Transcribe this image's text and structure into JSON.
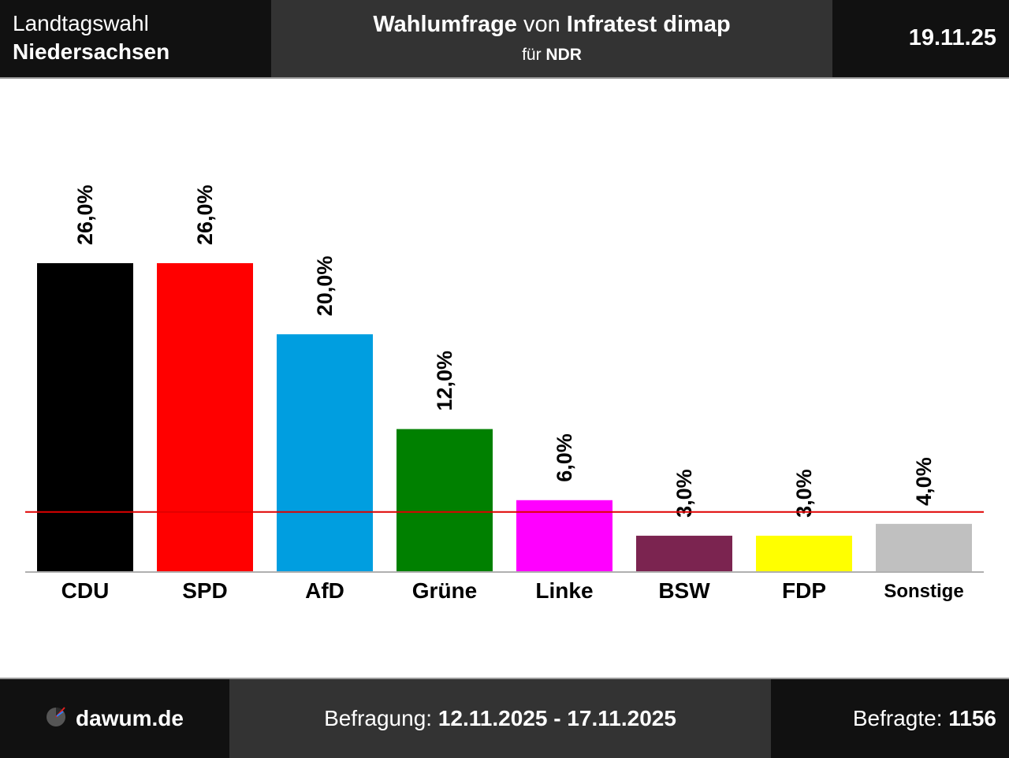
{
  "header": {
    "left_line1": "Landtagswahl",
    "left_line2": "Niedersachsen",
    "title_part1": "Wahlumfrage",
    "title_part2": " von ",
    "title_part3": "Infratest dimap",
    "sub_part1": "für ",
    "sub_part2": "NDR",
    "date": "19.11.25"
  },
  "footer": {
    "site": "dawum.de",
    "period_label": "Befragung: ",
    "period_value": "12.11.2025 - 17.11.2025",
    "respondents_label": "Befragte: ",
    "respondents_value": "1156"
  },
  "chart_data": {
    "type": "bar",
    "categories": [
      "CDU",
      "SPD",
      "AfD",
      "Grüne",
      "Linke",
      "BSW",
      "FDP",
      "Sonstige"
    ],
    "values": [
      26.0,
      26.0,
      20.0,
      12.0,
      6.0,
      3.0,
      3.0,
      4.0
    ],
    "value_labels": [
      "26,0%",
      "26,0%",
      "20,0%",
      "12,0%",
      "6,0%",
      "3,0%",
      "3,0%",
      "4,0%"
    ],
    "colors": [
      "#000000",
      "#ff0000",
      "#009ee0",
      "#008000",
      "#ff00ff",
      "#7b2450",
      "#ffff00",
      "#c0c0c0"
    ],
    "threshold": 5.0,
    "threshold_color": "#e00000",
    "ylim": [
      0,
      26.0
    ],
    "grid": false,
    "legend": "none"
  }
}
